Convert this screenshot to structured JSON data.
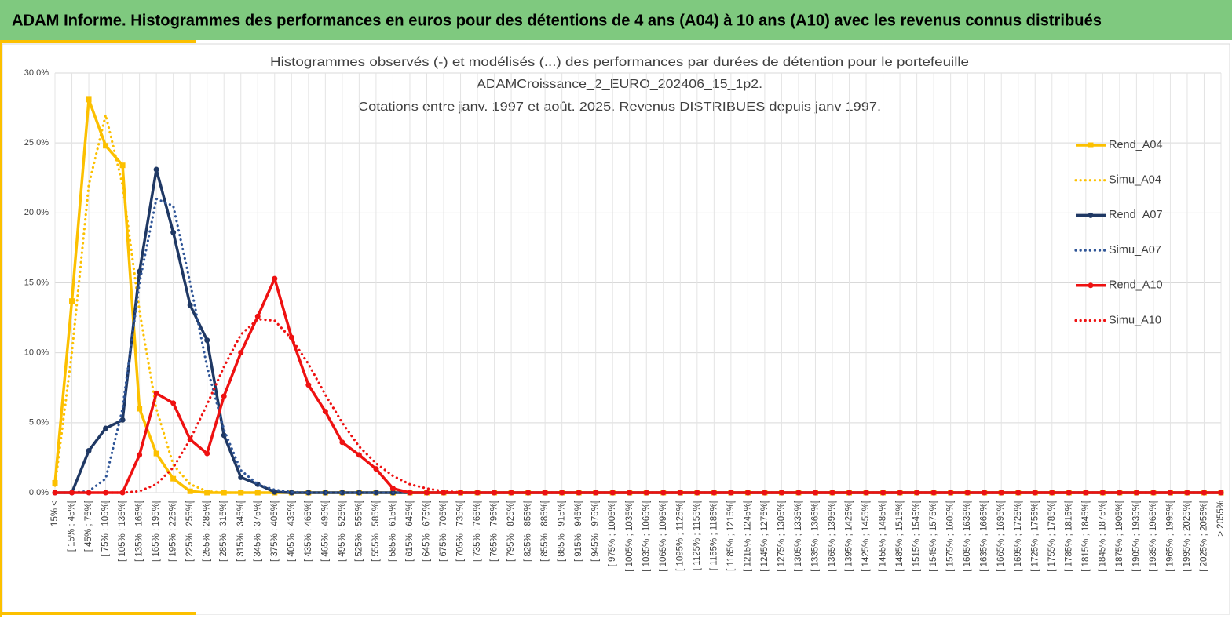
{
  "header": {
    "title": "ADAM Informe. Histogrammes des performances en euros pour des détentions de 4 ans (A04) à 10 ans (A10) avec les revenus connus distribués"
  },
  "chart_data": {
    "type": "line",
    "title": [
      "Histogrammes observés (-) et modélisés (...) des performances  par durées de détention pour le portefeuille",
      "ADAMCroissance_2_EURO_202406_15_1p2.",
      "Cotations  entre janv. 1997 et août. 2025. Revenus DISTRIBUES depuis janv 1997."
    ],
    "categories": [
      "15% <",
      "[ 15% ; 45%[",
      "[ 45% ; 75%[",
      "[ 75% ; 105%[",
      "[ 105% ; 135%[",
      "[ 135% ; 165%[",
      "[ 165% ; 195%[",
      "[ 195% ; 225%[",
      "[ 225% ; 255%[",
      "[ 255% ; 285%[",
      "[ 285% ; 315%[",
      "[ 315% ; 345%[",
      "[ 345% ; 375%[",
      "[ 375% ; 405%[",
      "[ 405% ; 435%[",
      "[ 435% ; 465%[",
      "[ 465% ; 495%[",
      "[ 495% ; 525%[",
      "[ 525% ; 555%[",
      "[ 555% ; 585%[",
      "[ 585% ; 615%[",
      "[ 615% ; 645%[",
      "[ 645% ; 675%[",
      "[ 675% ; 705%[",
      "[ 705% ; 735%[",
      "[ 735% ; 765%[",
      "[ 765% ; 795%[",
      "[ 795% ; 825%[",
      "[ 825% ; 855%[",
      "[ 855% ; 885%[",
      "[ 885% ; 915%[",
      "[ 915% ; 945%[",
      "[ 945% ; 975%[",
      "[ 975% ; 1005%[",
      "[ 1005% ; 1035%[",
      "[ 1035% ; 1065%[",
      "[ 1065% ; 1095%[",
      "[ 1095% ; 1125%[",
      "[ 1125% ; 1155%[",
      "[ 1155% ; 1185%[",
      "[ 1185% ; 1215%[",
      "[ 1215% ; 1245%[",
      "[ 1245% ; 1275%[",
      "[ 1275% ; 1305%[",
      "[ 1305% ; 1335%[",
      "[ 1335% ; 1365%[",
      "[ 1365% ; 1395%[",
      "[ 1395% ; 1425%[",
      "[ 1425% ; 1455%[",
      "[ 1455% ; 1485%[",
      "[ 1485% ; 1515%[",
      "[ 1515% ; 1545%[",
      "[ 1545% ; 1575%[",
      "[ 1575% ; 1605%[",
      "[ 1605% ; 1635%[",
      "[ 1635% ; 1665%[",
      "[ 1665% ; 1695%[",
      "[ 1695% ; 1725%[",
      "[ 1725% ; 1755%[",
      "[ 1755% ; 1785%[",
      "[ 1785% ; 1815%[",
      "[ 1815% ; 1845%[",
      "[ 1845% ; 1875%[",
      "[ 1875% ; 1905%[",
      "[ 1905% ; 1935%[",
      "[ 1935% ; 1965%[",
      "[ 1965% ; 1995%[",
      "[ 1995% ; 2025%[",
      "[ 2025% ; 2055%[",
      "> 2055%"
    ],
    "series": [
      {
        "name": "Rend_A04",
        "color": "#fcc000",
        "style": "solid",
        "marker": "square",
        "values": [
          0.7,
          13.7,
          28.1,
          24.8,
          23.4,
          6.0,
          2.8,
          1.0,
          0.1,
          0,
          0,
          0,
          0,
          0,
          0,
          0,
          0,
          0,
          0,
          0,
          0,
          0,
          0,
          0,
          0,
          0,
          0,
          0,
          0,
          0,
          0,
          0,
          0,
          0,
          0,
          0,
          0,
          0,
          0,
          0,
          0,
          0,
          0,
          0,
          0,
          0,
          0,
          0,
          0,
          0,
          0,
          0,
          0,
          0,
          0,
          0,
          0,
          0,
          0,
          0,
          0,
          0,
          0,
          0,
          0,
          0,
          0,
          0,
          0,
          0
        ]
      },
      {
        "name": "Simu_A04",
        "color": "#fcc000",
        "style": "dotted",
        "values": [
          0.5,
          10,
          22,
          27,
          22,
          13,
          6,
          2,
          0.6,
          0.1,
          0,
          0,
          0,
          0,
          0,
          0,
          0,
          0,
          0,
          0,
          0,
          0,
          0,
          0,
          0,
          0,
          0,
          0,
          0,
          0,
          0,
          0,
          0,
          0,
          0,
          0,
          0,
          0,
          0,
          0,
          0,
          0,
          0,
          0,
          0,
          0,
          0,
          0,
          0,
          0,
          0,
          0,
          0,
          0,
          0,
          0,
          0,
          0,
          0,
          0,
          0,
          0,
          0,
          0,
          0,
          0,
          0,
          0,
          0,
          0
        ]
      },
      {
        "name": "Rend_A07",
        "color": "#1f3864",
        "style": "solid",
        "marker": "circle",
        "values": [
          0,
          0,
          3.0,
          4.6,
          5.2,
          15.8,
          23.1,
          18.6,
          13.4,
          10.9,
          4.1,
          1.1,
          0.6,
          0.05,
          0,
          0,
          0,
          0,
          0,
          0,
          0,
          0,
          0,
          0,
          0,
          0,
          0,
          0,
          0,
          0,
          0,
          0,
          0,
          0,
          0,
          0,
          0,
          0,
          0,
          0,
          0,
          0,
          0,
          0,
          0,
          0,
          0,
          0,
          0,
          0,
          0,
          0,
          0,
          0,
          0,
          0,
          0,
          0,
          0,
          0,
          0,
          0,
          0,
          0,
          0,
          0,
          0,
          0,
          0,
          0
        ]
      },
      {
        "name": "Simu_A07",
        "color": "#2f5597",
        "style": "dotted",
        "values": [
          0,
          0,
          0.1,
          1.0,
          6,
          15,
          21,
          20.5,
          15,
          9,
          4.5,
          1.6,
          0.6,
          0.2,
          0.05,
          0,
          0,
          0,
          0,
          0,
          0,
          0,
          0,
          0,
          0,
          0,
          0,
          0,
          0,
          0,
          0,
          0,
          0,
          0,
          0,
          0,
          0,
          0,
          0,
          0,
          0,
          0,
          0,
          0,
          0,
          0,
          0,
          0,
          0,
          0,
          0,
          0,
          0,
          0,
          0,
          0,
          0,
          0,
          0,
          0,
          0,
          0,
          0,
          0,
          0,
          0,
          0,
          0,
          0,
          0
        ]
      },
      {
        "name": "Rend_A10",
        "color": "#ee1111",
        "style": "solid",
        "marker": "circle",
        "values": [
          0,
          0,
          0,
          0,
          0,
          2.7,
          7.1,
          6.4,
          3.8,
          2.8,
          6.9,
          10.0,
          12.6,
          15.3,
          11.1,
          7.7,
          5.8,
          3.6,
          2.7,
          1.7,
          0.3,
          0,
          0,
          0,
          0,
          0,
          0,
          0,
          0,
          0,
          0,
          0,
          0,
          0,
          0,
          0,
          0,
          0,
          0,
          0,
          0,
          0,
          0,
          0,
          0,
          0,
          0,
          0,
          0,
          0,
          0,
          0,
          0,
          0,
          0,
          0,
          0,
          0,
          0,
          0,
          0,
          0,
          0,
          0,
          0,
          0,
          0,
          0,
          0,
          0
        ]
      },
      {
        "name": "Simu_A10",
        "color": "#ee1111",
        "style": "dotted",
        "values": [
          0,
          0,
          0,
          0,
          0,
          0.1,
          0.6,
          1.8,
          3.8,
          6.3,
          9,
          11.3,
          12.4,
          12.3,
          11,
          9.2,
          7,
          5,
          3.3,
          2.1,
          1.2,
          0.6,
          0.3,
          0.1,
          0.03,
          0,
          0,
          0,
          0,
          0,
          0,
          0,
          0,
          0,
          0,
          0,
          0,
          0,
          0,
          0,
          0,
          0,
          0,
          0,
          0,
          0,
          0,
          0,
          0,
          0,
          0,
          0,
          0,
          0,
          0,
          0,
          0,
          0,
          0,
          0,
          0,
          0,
          0,
          0,
          0,
          0,
          0,
          0,
          0,
          0
        ]
      }
    ],
    "ylim": [
      0,
      30
    ],
    "yticks": [
      {
        "value": 0,
        "label": "0,0%"
      },
      {
        "value": 5,
        "label": "5,0%"
      },
      {
        "value": 10,
        "label": "10,0%"
      },
      {
        "value": 15,
        "label": "15,0%"
      },
      {
        "value": 20,
        "label": "20,0%"
      },
      {
        "value": 25,
        "label": "25,0%"
      },
      {
        "value": 30,
        "label": "30,0%"
      }
    ],
    "grid": true,
    "legend": "right"
  }
}
